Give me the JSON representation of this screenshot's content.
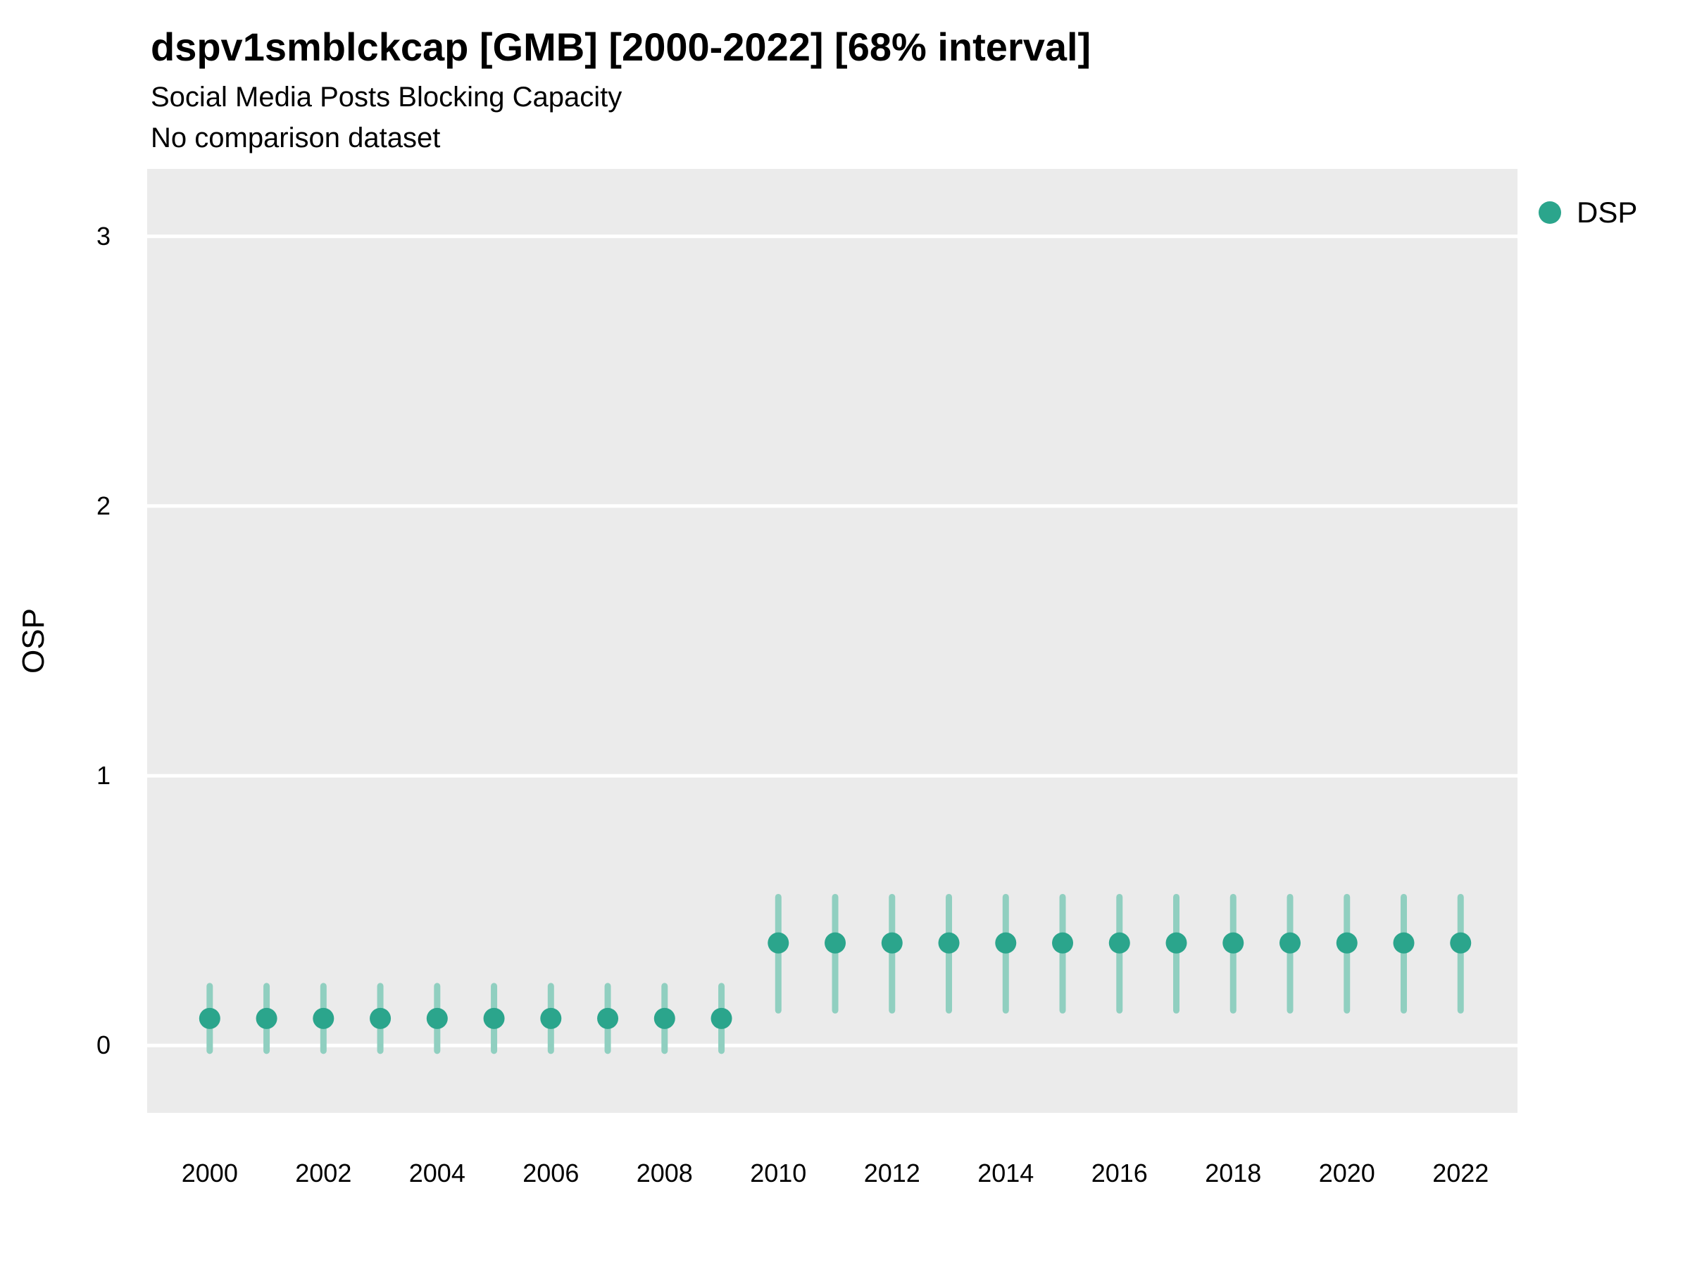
{
  "header": {
    "title": "dspv1smblckcap [GMB] [2000-2022] [68% interval]",
    "subtitle": "Social Media Posts Blocking Capacity",
    "note": "No comparison dataset"
  },
  "legend": {
    "items": [
      {
        "label": "DSP",
        "color": "#2BA58C"
      }
    ]
  },
  "chart_data": {
    "type": "scatter",
    "title": "dspv1smblckcap [GMB] [2000-2022] [68% interval]",
    "subtitle": "Social Media Posts Blocking Capacity",
    "note": "No comparison dataset",
    "xlabel": "",
    "ylabel": "OSP",
    "x": [
      2000,
      2001,
      2002,
      2003,
      2004,
      2005,
      2006,
      2007,
      2008,
      2009,
      2010,
      2011,
      2012,
      2013,
      2014,
      2015,
      2016,
      2017,
      2018,
      2019,
      2020,
      2021,
      2022
    ],
    "series": [
      {
        "name": "DSP",
        "values": [
          0.1,
          0.1,
          0.1,
          0.1,
          0.1,
          0.1,
          0.1,
          0.1,
          0.1,
          0.1,
          0.38,
          0.38,
          0.38,
          0.38,
          0.38,
          0.38,
          0.38,
          0.38,
          0.38,
          0.38,
          0.38,
          0.38,
          0.38
        ],
        "lower": [
          -0.02,
          -0.02,
          -0.02,
          -0.02,
          -0.02,
          -0.02,
          -0.02,
          -0.02,
          -0.02,
          -0.02,
          0.13,
          0.13,
          0.13,
          0.13,
          0.13,
          0.13,
          0.13,
          0.13,
          0.13,
          0.13,
          0.13,
          0.13,
          0.13
        ],
        "upper": [
          0.22,
          0.22,
          0.22,
          0.22,
          0.22,
          0.22,
          0.22,
          0.22,
          0.22,
          0.22,
          0.55,
          0.55,
          0.55,
          0.55,
          0.55,
          0.55,
          0.55,
          0.55,
          0.55,
          0.55,
          0.55,
          0.55,
          0.55
        ]
      }
    ],
    "interval_label": "68% interval",
    "x_ticks": [
      2000,
      2002,
      2004,
      2006,
      2008,
      2010,
      2012,
      2014,
      2016,
      2018,
      2020,
      2022
    ],
    "y_ticks": [
      0,
      1,
      2,
      3
    ],
    "xlim": [
      1998.9,
      2023.0
    ],
    "ylim": [
      -0.25,
      3.25
    ],
    "grid": true,
    "legend_position": "right",
    "colors": {
      "point": "#2BA58C",
      "interval": "#90CFC0",
      "panel": "#EBEBEB",
      "grid": "#FFFFFF",
      "text": "#000000"
    }
  }
}
